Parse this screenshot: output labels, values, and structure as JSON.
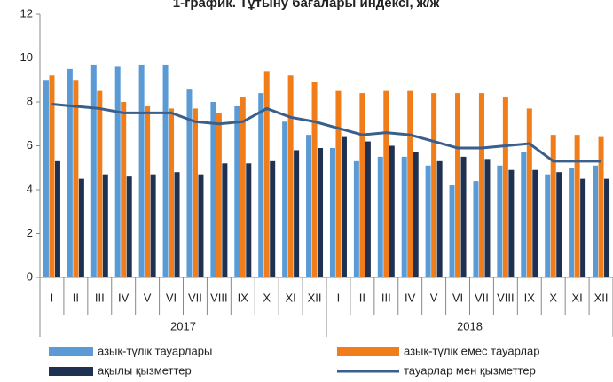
{
  "chart_data": {
    "type": "bar",
    "title": "1-график. Тұтыну бағалары индексі, ж/ж",
    "categories": [
      "I",
      "II",
      "III",
      "IV",
      "V",
      "VI",
      "VII",
      "VIII",
      "IX",
      "X",
      "XI",
      "XII",
      "I",
      "II",
      "III",
      "IV",
      "V",
      "VI",
      "VII",
      "VIII",
      "IX",
      "X",
      "XI",
      "XII"
    ],
    "groups": [
      "2017",
      "2018"
    ],
    "ylim": [
      0,
      12
    ],
    "yticks": [
      0,
      2,
      4,
      6,
      8,
      10,
      12
    ],
    "series": [
      {
        "name": "азық-түлік тауарлары",
        "color": "#5b9bd5",
        "type": "bar",
        "values": [
          9.0,
          9.5,
          9.7,
          9.6,
          9.7,
          9.7,
          8.6,
          8.0,
          7.8,
          8.4,
          7.1,
          6.5,
          5.9,
          5.3,
          5.5,
          5.5,
          5.1,
          4.2,
          4.4,
          5.1,
          5.7,
          4.7,
          5.0,
          5.1
        ]
      },
      {
        "name": "азық-түлік емес тауарлар",
        "color": "#f07c1a",
        "type": "bar",
        "values": [
          9.2,
          9.0,
          8.5,
          8.0,
          7.8,
          7.7,
          7.7,
          7.5,
          8.2,
          9.4,
          9.2,
          8.9,
          8.5,
          8.4,
          8.5,
          8.5,
          8.4,
          8.4,
          8.4,
          8.2,
          7.7,
          6.5,
          6.5,
          6.4
        ]
      },
      {
        "name": "ақылы қызметтер",
        "color": "#1f3150",
        "type": "bar",
        "values": [
          5.3,
          4.5,
          4.7,
          4.6,
          4.7,
          4.8,
          4.7,
          5.2,
          5.2,
          5.3,
          5.8,
          5.9,
          6.4,
          6.2,
          6.0,
          5.7,
          5.3,
          5.5,
          5.4,
          4.9,
          4.9,
          4.8,
          4.5,
          4.5
        ]
      },
      {
        "name": "тауарлар мен қызметтер",
        "color": "#3b5f8c",
        "type": "line",
        "values": [
          7.9,
          7.8,
          7.7,
          7.5,
          7.5,
          7.5,
          7.1,
          7.0,
          7.1,
          7.7,
          7.3,
          7.1,
          6.8,
          6.5,
          6.6,
          6.5,
          6.2,
          5.9,
          5.9,
          6.0,
          6.1,
          5.3,
          5.3,
          5.3
        ]
      }
    ]
  }
}
